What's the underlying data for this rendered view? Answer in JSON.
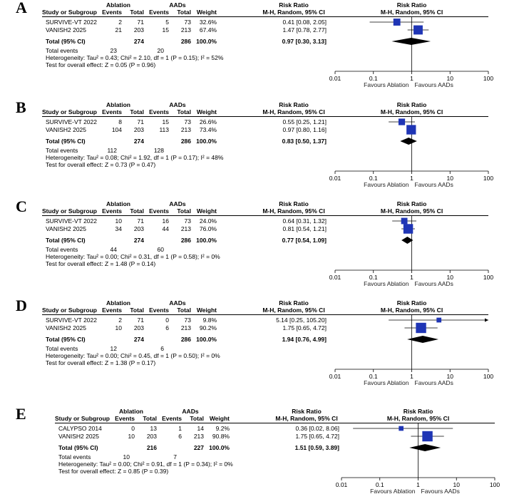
{
  "headers": {
    "study": "Study or Subgroup",
    "ablation": "Ablation",
    "aads": "AADs",
    "events": "Events",
    "total": "Total",
    "weight": "Weight",
    "rr": "Risk Ratio",
    "rr_method": "M-H, Random, 95% CI",
    "total_ci_label": "Total (95% CI)",
    "total_events_label": "Total events"
  },
  "favours": {
    "left": "Favours Ablation",
    "right": "Favours AADs"
  },
  "chart_data": [
    {
      "panel": "A",
      "type": "forest",
      "scale": "log",
      "xlim": [
        0.01,
        100
      ],
      "ticks": [
        "0.01",
        "0.1",
        "1",
        "10",
        "100"
      ],
      "studies": [
        {
          "name": "SURVIVE-VT 2022",
          "e1": "2",
          "t1": "71",
          "e2": "5",
          "t2": "73",
          "w": "32.6%",
          "ci": "0.41 [0.08, 2.05]",
          "rr": 0.41,
          "lo": 0.08,
          "hi": 2.05,
          "weight": 32.6
        },
        {
          "name": "VANISH2 2025",
          "e1": "21",
          "t1": "203",
          "e2": "15",
          "t2": "213",
          "w": "67.4%",
          "ci": "1.47 [0.78, 2.77]",
          "rr": 1.47,
          "lo": 0.78,
          "hi": 2.77,
          "weight": 67.4
        }
      ],
      "total": {
        "t1": "274",
        "t2": "286",
        "w": "100.0%",
        "ci": "0.97 [0.30, 3.13]",
        "rr": 0.97,
        "lo": 0.3,
        "hi": 3.13
      },
      "events": {
        "e1": "23",
        "e2": "20"
      },
      "heterogeneity": "Heterogeneity: Tau² = 0.43; Chi² = 2.10, df = 1 (P = 0.15); I² = 52%",
      "overall": "Test for overall effect: Z = 0.05 (P = 0.96)"
    },
    {
      "panel": "B",
      "type": "forest",
      "scale": "log",
      "xlim": [
        0.01,
        100
      ],
      "ticks": [
        "0.01",
        "0.1",
        "1",
        "10",
        "100"
      ],
      "studies": [
        {
          "name": "SURVIVE-VT 2022",
          "e1": "8",
          "t1": "71",
          "e2": "15",
          "t2": "73",
          "w": "26.6%",
          "ci": "0.55 [0.25, 1.21]",
          "rr": 0.55,
          "lo": 0.25,
          "hi": 1.21,
          "weight": 26.6
        },
        {
          "name": "VANISH2 2025",
          "e1": "104",
          "t1": "203",
          "e2": "113",
          "t2": "213",
          "w": "73.4%",
          "ci": "0.97 [0.80, 1.16]",
          "rr": 0.97,
          "lo": 0.8,
          "hi": 1.16,
          "weight": 73.4
        }
      ],
      "total": {
        "t1": "274",
        "t2": "286",
        "w": "100.0%",
        "ci": "0.83 [0.50, 1.37]",
        "rr": 0.83,
        "lo": 0.5,
        "hi": 1.37
      },
      "events": {
        "e1": "112",
        "e2": "128"
      },
      "heterogeneity": "Heterogeneity: Tau² = 0.08; Chi² = 1.92, df = 1 (P = 0.17); I² = 48%",
      "overall": "Test for overall effect: Z = 0.73 (P = 0.47)"
    },
    {
      "panel": "C",
      "type": "forest",
      "scale": "log",
      "xlim": [
        0.01,
        100
      ],
      "ticks": [
        "0.01",
        "0.1",
        "1",
        "10",
        "100"
      ],
      "studies": [
        {
          "name": "SURVIVE-VT 2022",
          "e1": "10",
          "t1": "71",
          "e2": "16",
          "t2": "73",
          "w": "24.0%",
          "ci": "0.64 [0.31, 1.32]",
          "rr": 0.64,
          "lo": 0.31,
          "hi": 1.32,
          "weight": 24.0
        },
        {
          "name": "VANISH2 2025",
          "e1": "34",
          "t1": "203",
          "e2": "44",
          "t2": "213",
          "w": "76.0%",
          "ci": "0.81 [0.54, 1.21]",
          "rr": 0.81,
          "lo": 0.54,
          "hi": 1.21,
          "weight": 76.0
        }
      ],
      "total": {
        "t1": "274",
        "t2": "286",
        "w": "100.0%",
        "ci": "0.77 [0.54, 1.09]",
        "rr": 0.77,
        "lo": 0.54,
        "hi": 1.09
      },
      "events": {
        "e1": "44",
        "e2": "60"
      },
      "heterogeneity": "Heterogeneity: Tau² = 0.00; Chi² = 0.31, df = 1 (P = 0.58); I² = 0%",
      "overall": "Test for overall effect: Z = 1.48 (P = 0.14)"
    },
    {
      "panel": "D",
      "type": "forest",
      "scale": "log",
      "xlim": [
        0.01,
        100
      ],
      "ticks": [
        "0.01",
        "0.1",
        "1",
        "10",
        "100"
      ],
      "studies": [
        {
          "name": "SURVIVE-VT 2022",
          "e1": "2",
          "t1": "71",
          "e2": "0",
          "t2": "73",
          "w": "9.8%",
          "ci": "5.14 [0.25, 105.20]",
          "rr": 5.14,
          "lo": 0.25,
          "hi": 105.2,
          "weight": 9.8
        },
        {
          "name": "VANISH2 2025",
          "e1": "10",
          "t1": "203",
          "e2": "6",
          "t2": "213",
          "w": "90.2%",
          "ci": "1.75 [0.65, 4.72]",
          "rr": 1.75,
          "lo": 0.65,
          "hi": 4.72,
          "weight": 90.2
        }
      ],
      "total": {
        "t1": "274",
        "t2": "286",
        "w": "100.0%",
        "ci": "1.94 [0.76, 4.99]",
        "rr": 1.94,
        "lo": 0.76,
        "hi": 4.99
      },
      "events": {
        "e1": "12",
        "e2": "6"
      },
      "heterogeneity": "Heterogeneity: Tau² = 0.00; Chi² = 0.45, df = 1 (P = 0.50); I² = 0%",
      "overall": "Test for overall effect: Z = 1.38 (P = 0.17)"
    },
    {
      "panel": "E",
      "type": "forest",
      "scale": "log",
      "xlim": [
        0.01,
        100
      ],
      "ticks": [
        "0.01",
        "0.1",
        "1",
        "10",
        "100"
      ],
      "studies": [
        {
          "name": "CALYPSO 2014",
          "e1": "0",
          "t1": "13",
          "e2": "1",
          "t2": "14",
          "w": "9.2%",
          "ci": "0.36 [0.02, 8.06]",
          "rr": 0.36,
          "lo": 0.02,
          "hi": 8.06,
          "weight": 9.2
        },
        {
          "name": "VANISH2 2025",
          "e1": "10",
          "t1": "203",
          "e2": "6",
          "t2": "213",
          "w": "90.8%",
          "ci": "1.75 [0.65, 4.72]",
          "rr": 1.75,
          "lo": 0.65,
          "hi": 4.72,
          "weight": 90.8
        }
      ],
      "total": {
        "t1": "216",
        "t2": "227",
        "w": "100.0%",
        "ci": "1.51 [0.59, 3.89]",
        "rr": 1.51,
        "lo": 0.59,
        "hi": 3.89
      },
      "events": {
        "e1": "10",
        "e2": "7"
      },
      "heterogeneity": "Heterogeneity: Tau² = 0.00; Chi² = 0.91, df = 1 (P = 0.34); I² = 0%",
      "overall": "Test for overall effect: Z = 0.85 (P = 0.39)"
    }
  ]
}
